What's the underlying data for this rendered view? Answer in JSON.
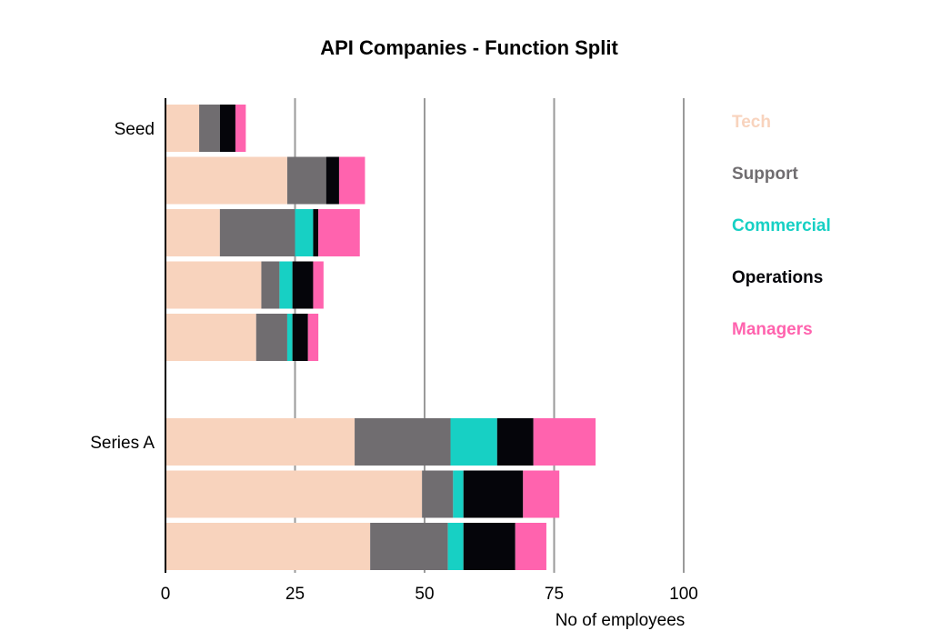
{
  "chart_data": {
    "type": "bar",
    "orientation": "horizontal",
    "stacked": true,
    "title": "API Companies - Function Split",
    "xlabel": "No of employees",
    "ylabel": "",
    "xlim": [
      0,
      100
    ],
    "xticks": [
      0,
      25,
      50,
      75,
      100
    ],
    "grid": true,
    "legend_position": "right",
    "groups": [
      {
        "label": "Seed",
        "bars": 5
      },
      {
        "label": "Series A",
        "bars": 3
      }
    ],
    "series": [
      {
        "name": "Tech",
        "color": "#f8d3bd",
        "values": [
          6.5,
          23.5,
          10.5,
          18.5,
          17.5,
          36.5,
          49.5,
          39.5
        ]
      },
      {
        "name": "Support",
        "color": "#706d70",
        "values": [
          4,
          7.5,
          14.5,
          3.5,
          6,
          18.5,
          6,
          15
        ]
      },
      {
        "name": "Commercial",
        "color": "#17d0c4",
        "values": [
          0,
          0,
          3.5,
          2.5,
          1,
          9,
          2,
          3
        ]
      },
      {
        "name": "Operations",
        "color": "#05050a",
        "values": [
          3,
          2.5,
          1,
          4,
          3,
          7,
          11.5,
          10
        ]
      },
      {
        "name": "Managers",
        "color": "#ff63ae",
        "values": [
          2,
          5,
          8,
          2,
          2,
          12,
          7,
          6
        ]
      }
    ]
  }
}
